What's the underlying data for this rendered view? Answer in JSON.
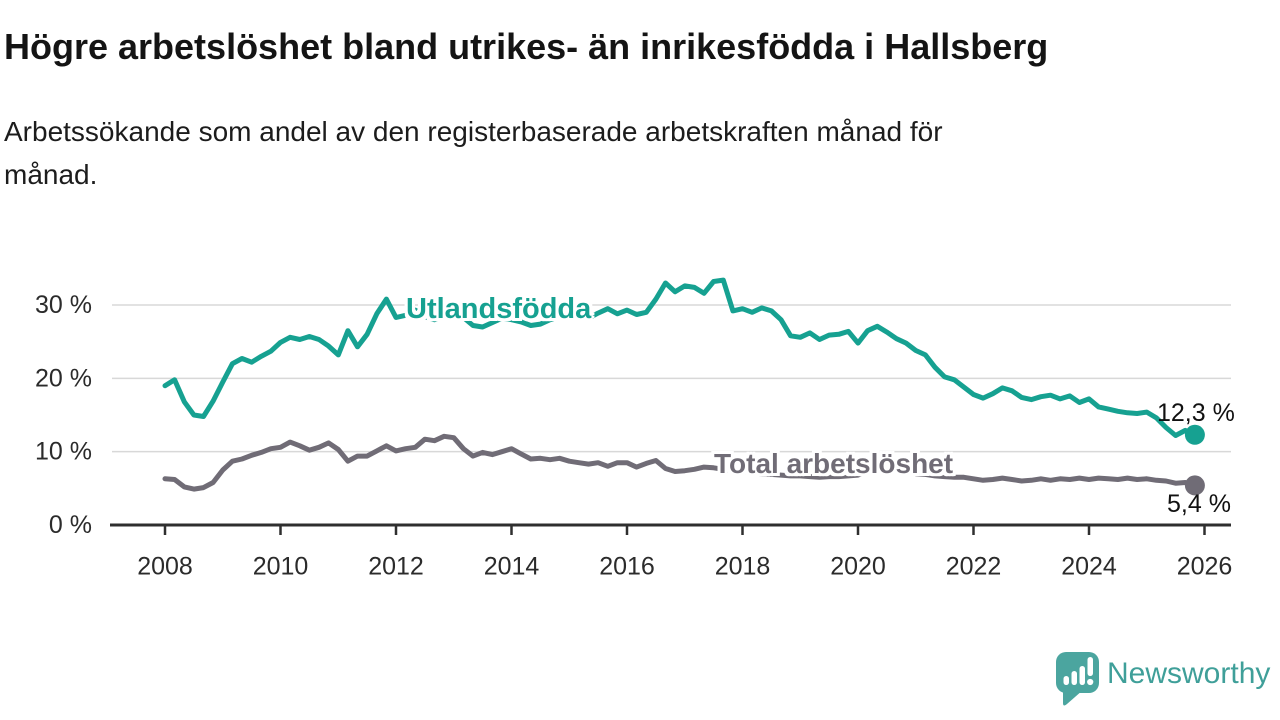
{
  "header": {
    "title": "Högre arbetslöshet bland utrikes- än inrikesfödda i Hallsberg",
    "subtitle": "Arbetssökande som andel av den registerbaserade arbetskraften månad för månad."
  },
  "footer": {
    "brand": "Newsworthy"
  },
  "colors": {
    "teal_series": "#16a191",
    "gray_series": "#706c76",
    "gridline": "#d8d8d8",
    "axis": "#2f2f2f",
    "tick_text": "#2b2b2b",
    "title_text": "#141414",
    "logo_teal": "#4ba59f"
  },
  "chart_data": {
    "type": "line",
    "title": "Högre arbetslöshet bland utrikes- än inrikesfödda i Hallsberg",
    "subtitle": "Arbetssökande som andel av den registerbaserade arbetskraften månad för månad.",
    "xlabel": "",
    "ylabel": "",
    "grid": "horizontal",
    "legend": "inline-labels",
    "x_axis": {
      "min": 2007.05,
      "max": 2026.45,
      "ticks": [
        {
          "value": 2008,
          "label": "2008"
        },
        {
          "value": 2010,
          "label": "2010"
        },
        {
          "value": 2012,
          "label": "2012"
        },
        {
          "value": 2014,
          "label": "2014"
        },
        {
          "value": 2016,
          "label": "2016"
        },
        {
          "value": 2018,
          "label": "2018"
        },
        {
          "value": 2020,
          "label": "2020"
        },
        {
          "value": 2022,
          "label": "2022"
        },
        {
          "value": 2024,
          "label": "2024"
        },
        {
          "value": 2026,
          "label": "2026"
        }
      ]
    },
    "y_axis": {
      "min": 0,
      "max": 34.8,
      "ticks": [
        {
          "value": 0,
          "label": "0 %"
        },
        {
          "value": 10,
          "label": "10 %"
        },
        {
          "value": 20,
          "label": "20 %"
        },
        {
          "value": 30,
          "label": "30 %"
        }
      ]
    },
    "series": [
      {
        "name": "Utlandsfödda",
        "color": "#16a191",
        "end_value": 12.3,
        "end_label": "12,3 %",
        "x_start": 2008.0,
        "x_step_years": 0.16667,
        "values": [
          19.0,
          19.8,
          16.8,
          15.0,
          14.8,
          16.9,
          19.5,
          22.0,
          22.7,
          22.2,
          23.0,
          23.7,
          24.9,
          25.6,
          25.3,
          25.7,
          25.3,
          24.4,
          23.2,
          26.5,
          24.3,
          26.0,
          28.8,
          30.8,
          28.3,
          28.6,
          29.3,
          28.4,
          28.0,
          28.6,
          29.2,
          28.3,
          27.2,
          27.0,
          27.6,
          28.2,
          28.0,
          27.7,
          27.2,
          27.4,
          28.0,
          28.4,
          28.2,
          28.6,
          28.2,
          28.9,
          29.5,
          28.8,
          29.3,
          28.7,
          29.0,
          30.8,
          33.0,
          31.8,
          32.6,
          32.4,
          31.6,
          33.2,
          33.4,
          29.2,
          29.5,
          29.0,
          29.6,
          29.2,
          28.0,
          25.8,
          25.6,
          26.2,
          25.3,
          25.9,
          26.0,
          26.4,
          24.8,
          26.5,
          27.1,
          26.3,
          25.4,
          24.8,
          23.8,
          23.2,
          21.5,
          20.2,
          19.8,
          18.8,
          17.8,
          17.3,
          17.9,
          18.7,
          18.3,
          17.4,
          17.1,
          17.5,
          17.7,
          17.2,
          17.6,
          16.7,
          17.2,
          16.1,
          15.8,
          15.5,
          15.3,
          15.2,
          15.4,
          14.6,
          13.3,
          12.2,
          12.9,
          12.3
        ]
      },
      {
        "name": "Total arbetslöshet",
        "color": "#706c76",
        "end_value": 5.4,
        "end_label": "5,4 %",
        "x_start": 2008.0,
        "x_step_years": 0.16667,
        "values": [
          6.3,
          6.2,
          5.2,
          4.9,
          5.1,
          5.8,
          7.5,
          8.7,
          9.0,
          9.5,
          9.9,
          10.4,
          10.6,
          11.3,
          10.8,
          10.2,
          10.6,
          11.2,
          10.3,
          8.7,
          9.4,
          9.4,
          10.1,
          10.8,
          10.1,
          10.4,
          10.6,
          11.7,
          11.5,
          12.1,
          11.9,
          10.4,
          9.4,
          9.9,
          9.6,
          10.0,
          10.4,
          9.7,
          9.0,
          9.1,
          8.9,
          9.1,
          8.7,
          8.5,
          8.3,
          8.5,
          8.0,
          8.5,
          8.5,
          7.9,
          8.4,
          8.8,
          7.7,
          7.3,
          7.4,
          7.6,
          7.9,
          7.8,
          7.6,
          7.4,
          7.3,
          7.1,
          7.0,
          6.9,
          6.8,
          6.7,
          6.7,
          6.6,
          6.5,
          6.6,
          6.6,
          6.7,
          6.8,
          7.4,
          7.7,
          7.6,
          7.4,
          7.2,
          7.0,
          6.9,
          6.7,
          6.6,
          6.5,
          6.5,
          6.3,
          6.1,
          6.2,
          6.4,
          6.2,
          6.0,
          6.1,
          6.3,
          6.1,
          6.3,
          6.2,
          6.4,
          6.2,
          6.4,
          6.3,
          6.2,
          6.4,
          6.2,
          6.3,
          6.1,
          6.0,
          5.7,
          5.8,
          5.4
        ]
      }
    ]
  }
}
